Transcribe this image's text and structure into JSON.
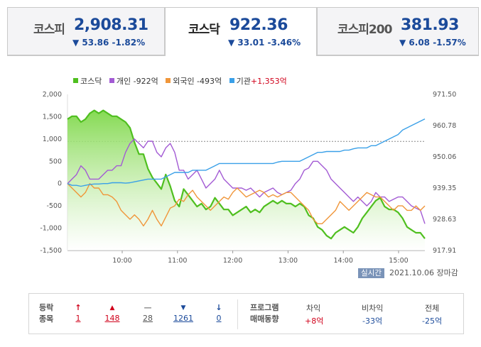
{
  "tabs": [
    {
      "name": "코스피",
      "value": "2,908.31",
      "change": "▼ 53.86 -1.82%"
    },
    {
      "name": "코스닥",
      "value": "922.36",
      "change": "▼ 33.01 -3.46%"
    },
    {
      "name": "코스피200",
      "value": "381.93",
      "change": "▼ 6.08 -1.57%"
    }
  ],
  "legend": {
    "kosdaq": "코스닥",
    "individual": "개인 -922억",
    "foreign": "외국인 -493억",
    "institution_label": "기관",
    "institution_value": "+1,353억"
  },
  "colors": {
    "kosdaq": "#4fbf1f",
    "individual": "#a35bd4",
    "foreign": "#f0963a",
    "institution": "#3aa0e8",
    "up": "#d0021b",
    "down": "#1b4a9a"
  },
  "chart_data": {
    "type": "line",
    "x_ticks": [
      "10:00",
      "11:00",
      "12:00",
      "13:00",
      "14:00",
      "15:00"
    ],
    "left_axis_ticks": [
      "2,000",
      "1,500",
      "1,000",
      "500",
      "0",
      "-500",
      "-1,000",
      "-1,500"
    ],
    "right_axis_ticks": [
      "971.50",
      "960.78",
      "950.06",
      "939.35",
      "928.63",
      "917.91"
    ],
    "left_ylim": [
      -1500,
      2000
    ],
    "right_ylim": [
      917.91,
      971.5
    ],
    "prev_close_line": 955.37,
    "series": [
      {
        "name": "코스닥",
        "axis": "right",
        "values": [
          963,
          964,
          964,
          962,
          963,
          965,
          966,
          965,
          966,
          965,
          964,
          964,
          963,
          962,
          960,
          955,
          951,
          951,
          946,
          943,
          941,
          939,
          944,
          940,
          935,
          933,
          939,
          937,
          935,
          933,
          934,
          932,
          933,
          936,
          934,
          932,
          932,
          930,
          931,
          932,
          933,
          931,
          932,
          931,
          933,
          934,
          935,
          934,
          935,
          934,
          934,
          933,
          934,
          933,
          930,
          929,
          926,
          925,
          923,
          922,
          924,
          925,
          926,
          925,
          924,
          926,
          929,
          931,
          933,
          935,
          936,
          933,
          932,
          932,
          931,
          929,
          926,
          925,
          924,
          924,
          922
        ]
      },
      {
        "name": "개인",
        "axis": "left",
        "values": [
          0,
          100,
          200,
          400,
          300,
          100,
          100,
          100,
          200,
          300,
          300,
          400,
          400,
          700,
          900,
          1000,
          900,
          800,
          950,
          950,
          700,
          600,
          800,
          900,
          700,
          300,
          300,
          100,
          200,
          300,
          100,
          -100,
          0,
          100,
          300,
          100,
          0,
          -100,
          -100,
          -100,
          -150,
          -100,
          -200,
          -300,
          -200,
          -150,
          -100,
          -200,
          -250,
          -200,
          -150,
          0,
          100,
          300,
          350,
          500,
          500,
          400,
          300,
          100,
          0,
          -100,
          -200,
          -300,
          -400,
          -300,
          -400,
          -500,
          -400,
          -200,
          -300,
          -300,
          -400,
          -350,
          -300,
          -300,
          -400,
          -500,
          -550,
          -600,
          -900
        ]
      },
      {
        "name": "외국인",
        "axis": "left",
        "values": [
          0,
          -100,
          -200,
          -300,
          -200,
          0,
          -100,
          -100,
          -250,
          -250,
          -300,
          -400,
          -600,
          -700,
          -800,
          -700,
          -800,
          -950,
          -800,
          -600,
          -800,
          -950,
          -750,
          -550,
          -500,
          -350,
          -400,
          -250,
          -150,
          -300,
          -400,
          -500,
          -600,
          -500,
          -400,
          -300,
          -350,
          -200,
          -100,
          -200,
          -300,
          -250,
          -200,
          -150,
          -200,
          -300,
          -250,
          -300,
          -250,
          -200,
          -200,
          -300,
          -400,
          -500,
          -600,
          -800,
          -900,
          -900,
          -800,
          -700,
          -600,
          -400,
          -500,
          -600,
          -500,
          -400,
          -300,
          -200,
          -250,
          -300,
          -300,
          -400,
          -500,
          -600,
          -500,
          -500,
          -600,
          -600,
          -500,
          -600,
          -500
        ]
      },
      {
        "name": "기관",
        "axis": "left",
        "values": [
          0,
          -40,
          -40,
          -60,
          -40,
          -20,
          -10,
          -10,
          0,
          0,
          20,
          20,
          20,
          10,
          20,
          40,
          60,
          80,
          100,
          100,
          100,
          100,
          150,
          200,
          250,
          250,
          250,
          250,
          300,
          300,
          300,
          300,
          350,
          400,
          450,
          450,
          450,
          450,
          450,
          450,
          450,
          450,
          450,
          450,
          450,
          450,
          450,
          480,
          500,
          500,
          500,
          500,
          500,
          550,
          600,
          650,
          700,
          700,
          720,
          720,
          720,
          720,
          750,
          750,
          780,
          800,
          800,
          800,
          850,
          850,
          900,
          950,
          1000,
          1050,
          1100,
          1200,
          1250,
          1300,
          1350,
          1400,
          1450
        ]
      }
    ]
  },
  "status": {
    "badge": "실시간",
    "datetime": "2021.10.06",
    "state": "장마감"
  },
  "footer": {
    "label_line1": "등락",
    "label_line2": "종목",
    "counts": [
      {
        "icon": "↑",
        "value": "1",
        "color": "#d0021b"
      },
      {
        "icon": "▲",
        "value": "148",
        "color": "#d0021b"
      },
      {
        "icon": "—",
        "value": "28",
        "color": "#888888"
      },
      {
        "icon": "▼",
        "value": "1261",
        "color": "#1b4a9a"
      },
      {
        "icon": "↓",
        "value": "0",
        "color": "#1b4a9a"
      }
    ],
    "program_label_line1": "프로그램",
    "program_label_line2": "매매동향",
    "program": [
      {
        "head": "차익",
        "value": "+8억",
        "color": "#d0021b"
      },
      {
        "head": "비차익",
        "value": "-33억",
        "color": "#1b4a9a"
      },
      {
        "head": "전체",
        "value": "-25억",
        "color": "#1b4a9a"
      }
    ]
  }
}
